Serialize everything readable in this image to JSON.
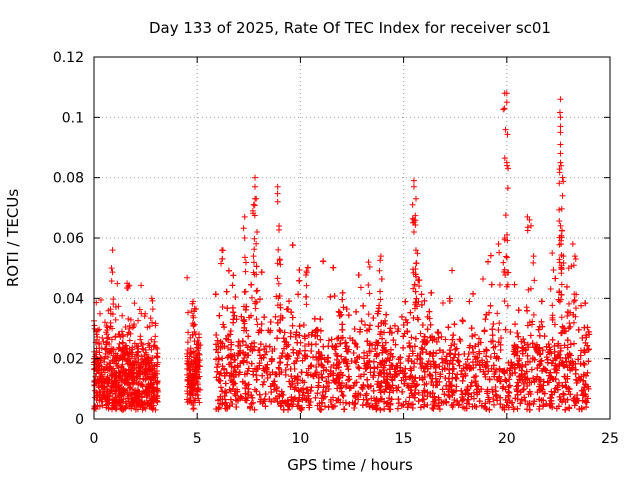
{
  "chart_data": {
    "type": "scatter",
    "title": "Day 133 of 2025, Rate Of TEC Index for receiver sc01",
    "xlabel": "GPS time / hours",
    "ylabel": "ROTI / TECUs",
    "xlim": [
      0,
      25
    ],
    "ylim": [
      0,
      0.12
    ],
    "xticks": [
      "0",
      "5",
      "10",
      "15",
      "20",
      "25"
    ],
    "yticks": [
      "0",
      "0.02",
      "0.04",
      "0.06",
      "0.08",
      "0.1",
      "0.12"
    ],
    "grid": true,
    "marker": "+",
    "color": "#ff0000",
    "coverage_segments": [
      {
        "start": 0.0,
        "end": 3.1,
        "base": 0.012,
        "spread": 0.012
      },
      {
        "start": 4.5,
        "end": 5.15,
        "base": 0.014,
        "spread": 0.012
      },
      {
        "start": 5.9,
        "end": 24.0,
        "base": 0.014,
        "spread": 0.016
      }
    ],
    "notable_points": [
      {
        "x": 0.9,
        "y": 0.056
      },
      {
        "x": 0.85,
        "y": 0.05
      },
      {
        "x": 1.6,
        "y": 0.045
      },
      {
        "x": 2.8,
        "y": 0.04
      },
      {
        "x": 4.8,
        "y": 0.039
      },
      {
        "x": 6.2,
        "y": 0.056
      },
      {
        "x": 7.3,
        "y": 0.067
      },
      {
        "x": 7.3,
        "y": 0.06
      },
      {
        "x": 7.8,
        "y": 0.08
      },
      {
        "x": 7.8,
        "y": 0.077
      },
      {
        "x": 7.8,
        "y": 0.073
      },
      {
        "x": 7.7,
        "y": 0.069
      },
      {
        "x": 7.9,
        "y": 0.062
      },
      {
        "x": 8.9,
        "y": 0.077
      },
      {
        "x": 8.9,
        "y": 0.072
      },
      {
        "x": 9.0,
        "y": 0.053
      },
      {
        "x": 10.3,
        "y": 0.049
      },
      {
        "x": 13.3,
        "y": 0.052
      },
      {
        "x": 13.9,
        "y": 0.054
      },
      {
        "x": 15.5,
        "y": 0.079
      },
      {
        "x": 15.5,
        "y": 0.077
      },
      {
        "x": 15.6,
        "y": 0.073
      },
      {
        "x": 15.5,
        "y": 0.066
      },
      {
        "x": 15.5,
        "y": 0.062
      },
      {
        "x": 15.6,
        "y": 0.056
      },
      {
        "x": 15.7,
        "y": 0.046
      },
      {
        "x": 19.9,
        "y": 0.108
      },
      {
        "x": 20.0,
        "y": 0.108
      },
      {
        "x": 20.0,
        "y": 0.105
      },
      {
        "x": 20.0,
        "y": 0.085
      },
      {
        "x": 19.9,
        "y": 0.06
      },
      {
        "x": 19.6,
        "y": 0.058
      },
      {
        "x": 21.0,
        "y": 0.067
      },
      {
        "x": 21.1,
        "y": 0.066
      },
      {
        "x": 22.6,
        "y": 0.106
      },
      {
        "x": 22.6,
        "y": 0.097
      },
      {
        "x": 22.6,
        "y": 0.095
      },
      {
        "x": 22.6,
        "y": 0.091
      },
      {
        "x": 22.6,
        "y": 0.088
      },
      {
        "x": 22.6,
        "y": 0.085
      },
      {
        "x": 22.7,
        "y": 0.08
      },
      {
        "x": 22.7,
        "y": 0.074
      },
      {
        "x": 22.6,
        "y": 0.064
      },
      {
        "x": 23.2,
        "y": 0.058
      },
      {
        "x": 23.3,
        "y": 0.054
      },
      {
        "x": 23.0,
        "y": 0.05
      },
      {
        "x": 21.3,
        "y": 0.054
      },
      {
        "x": 22.2,
        "y": 0.055
      }
    ]
  }
}
